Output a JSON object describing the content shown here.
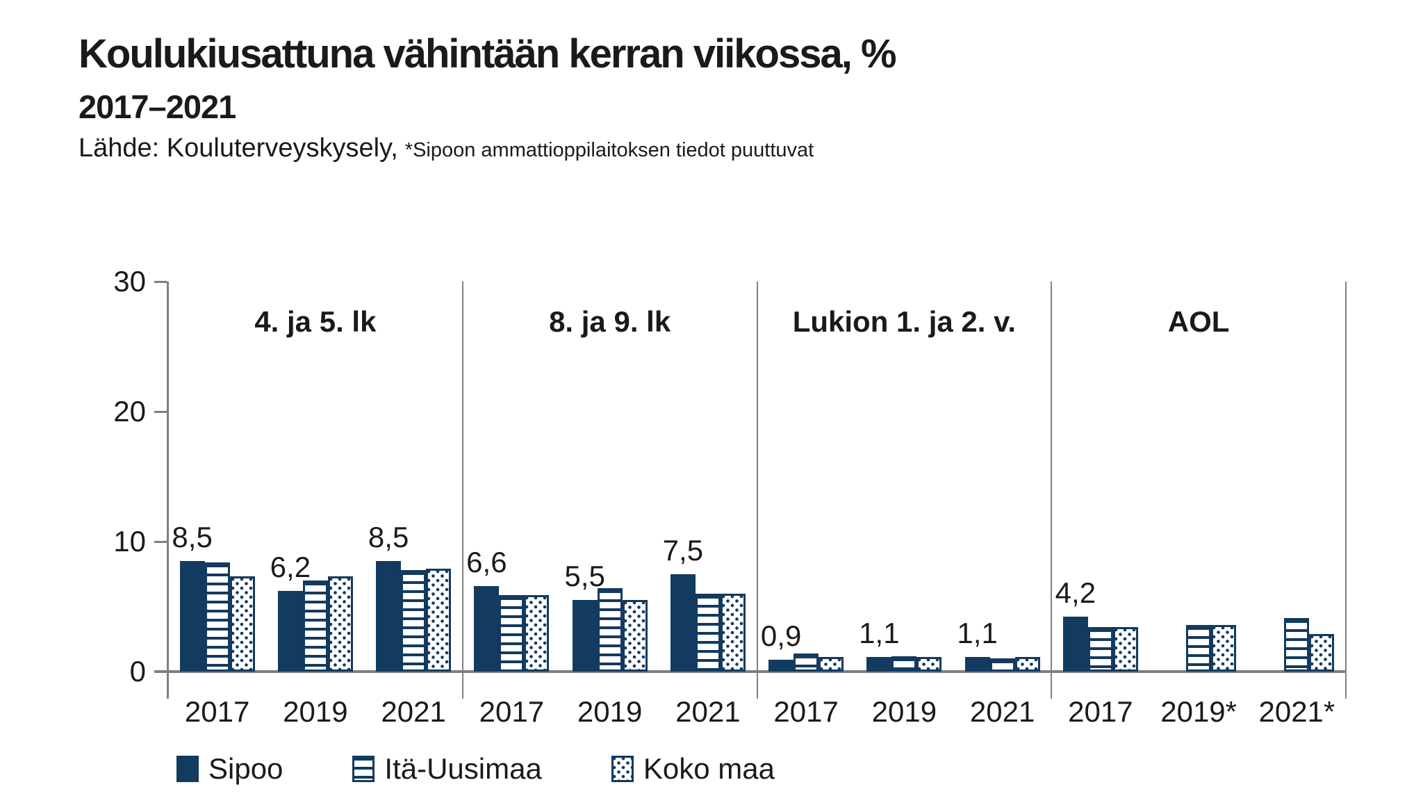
{
  "header": {
    "title": "Koulukiusattuna vähintään kerran viikossa, %",
    "subtitle": "2017–2021",
    "source": "Lähde: Kouluterveyskysely,",
    "note": "*Sipoon ammattioppilaitoksen tiedot puuttuvat"
  },
  "colors": {
    "navy": "#133A5F",
    "axis_gray": "#7F7F7F",
    "text": "#1A1A1A",
    "background": "#FFFFFF"
  },
  "legend": [
    {
      "name": "Sipoo",
      "pattern": "solid"
    },
    {
      "name": "Itä-Uusimaa",
      "pattern": "stripes"
    },
    {
      "name": "Koko maa",
      "pattern": "dots"
    }
  ],
  "chart_data": {
    "type": "bar",
    "title": "Koulukiusattuna vähintään kerran viikossa, %",
    "subtitle": "2017–2021",
    "xlabel": "",
    "ylabel": "",
    "ylim": [
      0,
      30
    ],
    "yticks": [
      0,
      10,
      20,
      30
    ],
    "grid": false,
    "legend_position": "bottom",
    "series_names": [
      "Sipoo",
      "Itä-Uusimaa",
      "Koko maa"
    ],
    "data_label_note": "labels shown only for Sipoo series, decimal comma format",
    "panels": [
      {
        "title": "4. ja 5. lk",
        "categories": [
          "2017",
          "2019",
          "2021"
        ],
        "series": [
          {
            "name": "Sipoo",
            "values": [
              8.5,
              6.2,
              8.5
            ],
            "labels": [
              "8,5",
              "6,2",
              "8,5"
            ]
          },
          {
            "name": "Itä-Uusimaa",
            "values": [
              8.4,
              7.0,
              7.8
            ]
          },
          {
            "name": "Koko maa",
            "values": [
              7.3,
              7.3,
              7.9
            ]
          }
        ]
      },
      {
        "title": "8. ja 9. lk",
        "categories": [
          "2017",
          "2019",
          "2021"
        ],
        "series": [
          {
            "name": "Sipoo",
            "values": [
              6.6,
              5.5,
              7.5
            ],
            "labels": [
              "6,6",
              "5,5",
              "7,5"
            ]
          },
          {
            "name": "Itä-Uusimaa",
            "values": [
              5.9,
              6.4,
              6.0
            ]
          },
          {
            "name": "Koko maa",
            "values": [
              5.9,
              5.5,
              6.0
            ]
          }
        ]
      },
      {
        "title": "Lukion 1. ja 2. v.",
        "categories": [
          "2017",
          "2019",
          "2021"
        ],
        "series": [
          {
            "name": "Sipoo",
            "values": [
              0.9,
              1.1,
              1.1
            ],
            "labels": [
              "0,9",
              "1,1",
              "1,1"
            ]
          },
          {
            "name": "Itä-Uusimaa",
            "values": [
              1.4,
              1.2,
              1.0
            ]
          },
          {
            "name": "Koko maa",
            "values": [
              1.1,
              1.1,
              1.1
            ]
          }
        ]
      },
      {
        "title": "AOL",
        "categories": [
          "2017",
          "2019*",
          "2021*"
        ],
        "series": [
          {
            "name": "Sipoo",
            "values": [
              4.2,
              null,
              null
            ],
            "labels": [
              "4,2",
              null,
              null
            ]
          },
          {
            "name": "Itä-Uusimaa",
            "values": [
              3.4,
              3.6,
              4.1
            ]
          },
          {
            "name": "Koko maa",
            "values": [
              3.4,
              3.6,
              2.9
            ]
          }
        ]
      }
    ]
  }
}
